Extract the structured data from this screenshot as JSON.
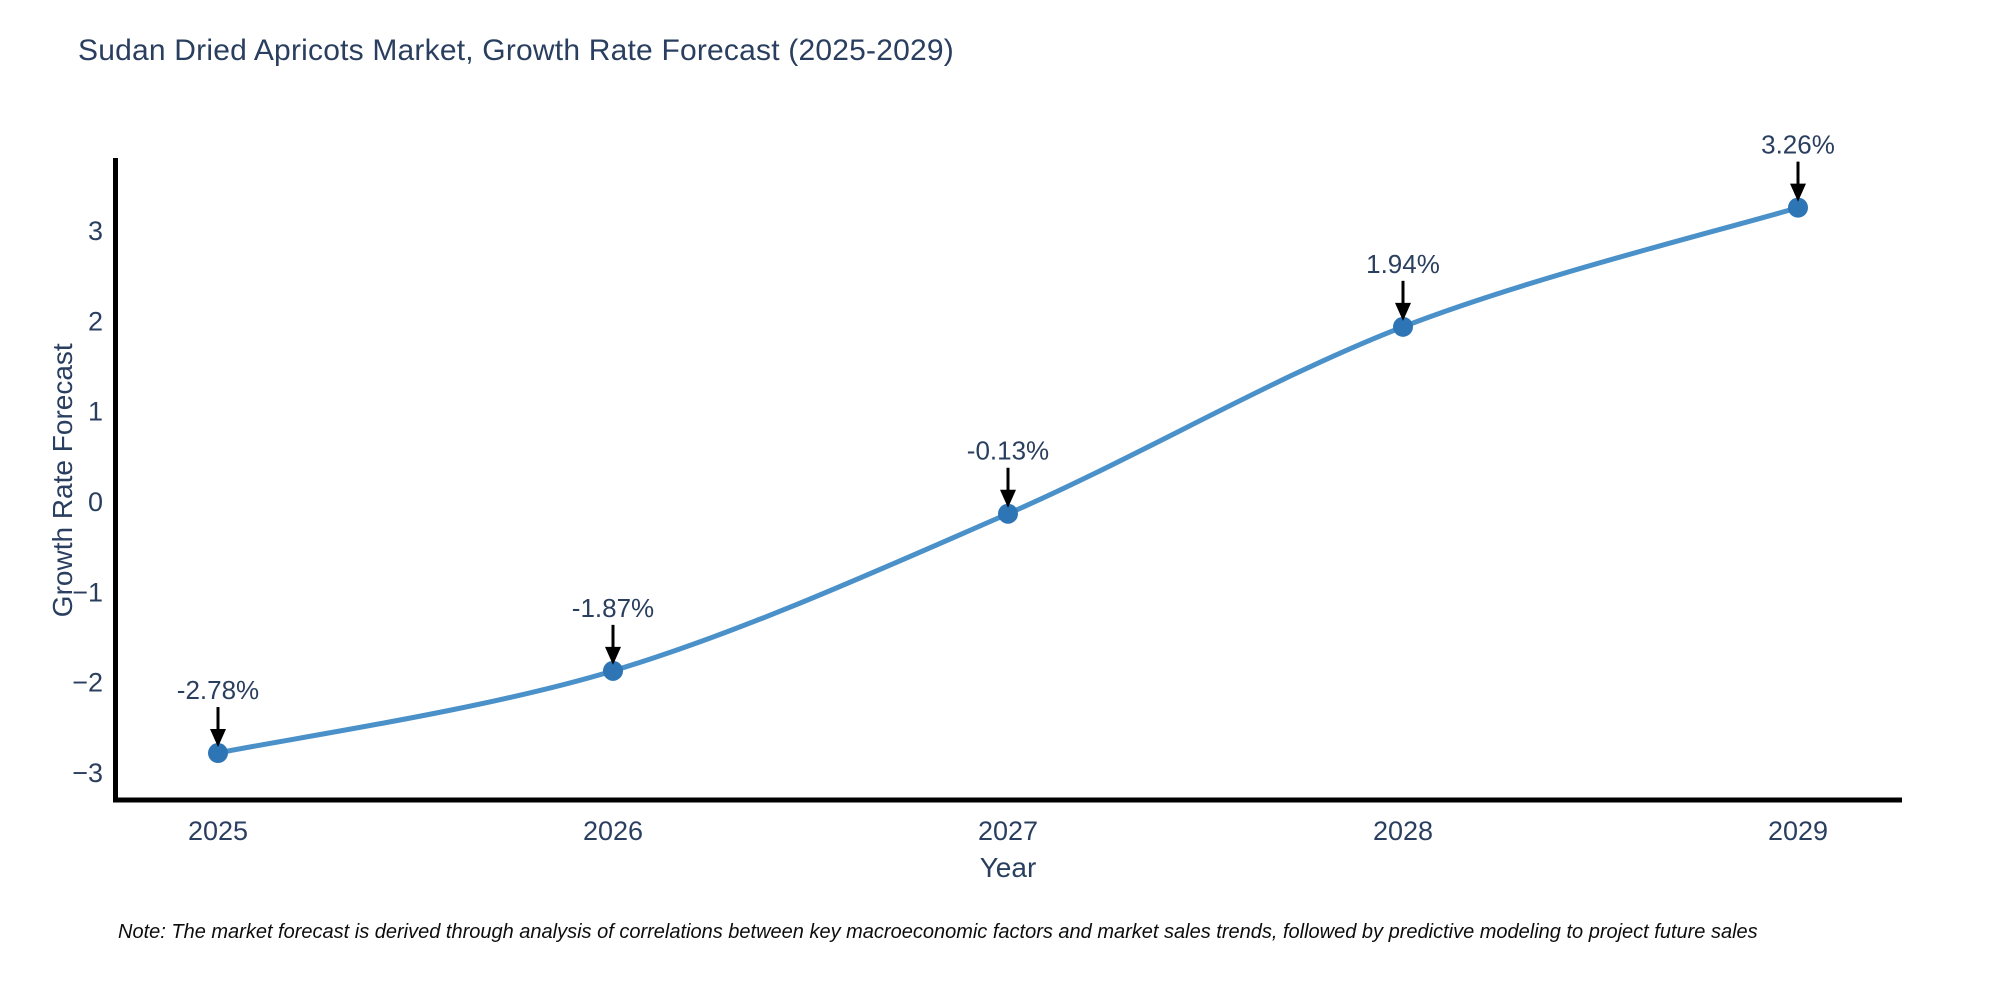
{
  "title": "Sudan Dried Apricots Market, Growth Rate Forecast (2025-2029)",
  "note": "Note: The market forecast is derived through analysis of correlations between key macroeconomic factors and market sales trends, followed by predictive modeling to project future sales",
  "colors": {
    "line": "#4a90c9",
    "marker": "#2e75b6",
    "axis": "#000000",
    "text": "#2a3f5f",
    "annotation_text": "#2a3f5f",
    "annotation_arrow": "#000000",
    "background": "#ffffff"
  },
  "chart_data": {
    "type": "line",
    "title": "Sudan Dried Apricots Market, Growth Rate Forecast (2025-2029)",
    "x": [
      2025,
      2026,
      2027,
      2028,
      2029
    ],
    "y": [
      -2.78,
      -1.87,
      -0.13,
      1.94,
      3.26
    ],
    "point_labels": [
      "-2.78%",
      "-1.87%",
      "-0.13%",
      "1.94%",
      "3.26%"
    ],
    "xlabel": "Year",
    "ylabel": "Growth Rate Forecast",
    "xticklabels": [
      "2025",
      "2026",
      "2027",
      "2028",
      "2029"
    ],
    "ytick_values": [
      3,
      2,
      1,
      0,
      -1,
      -2,
      -3
    ],
    "yticklabels": [
      "3",
      "2",
      "1",
      "0",
      "−1",
      "−2",
      "−3"
    ],
    "ylim": [
      -3.55,
      3.81
    ],
    "line_shape": "spline",
    "grid": false,
    "legend_visible": false
  }
}
